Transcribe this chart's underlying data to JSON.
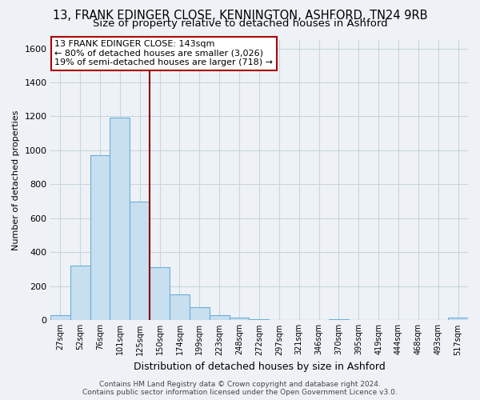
{
  "title": "13, FRANK EDINGER CLOSE, KENNINGTON, ASHFORD, TN24 9RB",
  "subtitle": "Size of property relative to detached houses in Ashford",
  "xlabel": "Distribution of detached houses by size in Ashford",
  "ylabel": "Number of detached properties",
  "categories": [
    "27sqm",
    "52sqm",
    "76sqm",
    "101sqm",
    "125sqm",
    "150sqm",
    "174sqm",
    "199sqm",
    "223sqm",
    "248sqm",
    "272sqm",
    "297sqm",
    "321sqm",
    "346sqm",
    "370sqm",
    "395sqm",
    "419sqm",
    "444sqm",
    "468sqm",
    "493sqm",
    "517sqm"
  ],
  "values": [
    28,
    320,
    970,
    1195,
    700,
    310,
    150,
    75,
    28,
    15,
    5,
    0,
    0,
    0,
    5,
    0,
    0,
    0,
    0,
    0,
    15
  ],
  "bar_color": "#c8dff0",
  "bar_edge_color": "#6baed6",
  "vline_color": "#8b0000",
  "annotation_title": "13 FRANK EDINGER CLOSE: 143sqm",
  "annotation_line1": "← 80% of detached houses are smaller (3,026)",
  "annotation_line2": "19% of semi-detached houses are larger (718) →",
  "annotation_box_color": "#ffffff",
  "annotation_box_edge": "#aa0000",
  "ylim": [
    0,
    1650
  ],
  "yticks": [
    0,
    200,
    400,
    600,
    800,
    1000,
    1200,
    1400,
    1600
  ],
  "footer_line1": "Contains HM Land Registry data © Crown copyright and database right 2024.",
  "footer_line2": "Contains public sector information licensed under the Open Government Licence v3.0.",
  "background_color": "#eef2f7",
  "plot_bg_color": "#eef2f7",
  "grid_color": "#c8d4e0",
  "title_fontsize": 10.5,
  "subtitle_fontsize": 9.5,
  "vline_x_idx": 4.5
}
